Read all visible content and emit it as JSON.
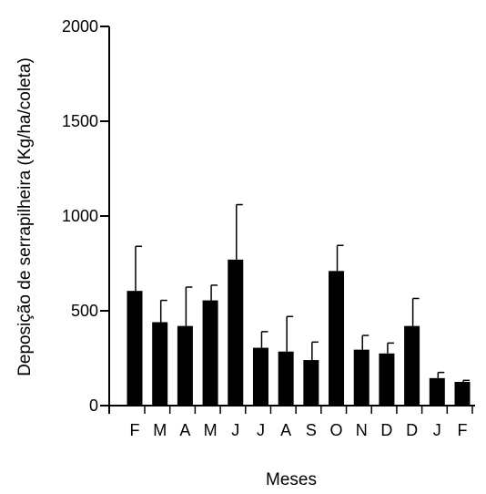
{
  "chart_data": {
    "type": "bar",
    "title": "",
    "xlabel": "Meses",
    "ylabel": "Deposição de serrapilheira (Kg/ha/coleta)",
    "ylim": [
      0,
      2000
    ],
    "yticks": [
      0,
      500,
      1000,
      1500,
      2000
    ],
    "grid": false,
    "categories": [
      "F",
      "M",
      "A",
      "M",
      "J",
      "J",
      "A",
      "S",
      "O",
      "N",
      "D",
      "D",
      "J",
      "F"
    ],
    "values": [
      605,
      440,
      420,
      555,
      770,
      305,
      285,
      240,
      710,
      295,
      275,
      420,
      145,
      125
    ],
    "errors": [
      235,
      115,
      205,
      80,
      290,
      85,
      185,
      95,
      135,
      75,
      55,
      145,
      30,
      8
    ],
    "bar_color": "#000000"
  }
}
